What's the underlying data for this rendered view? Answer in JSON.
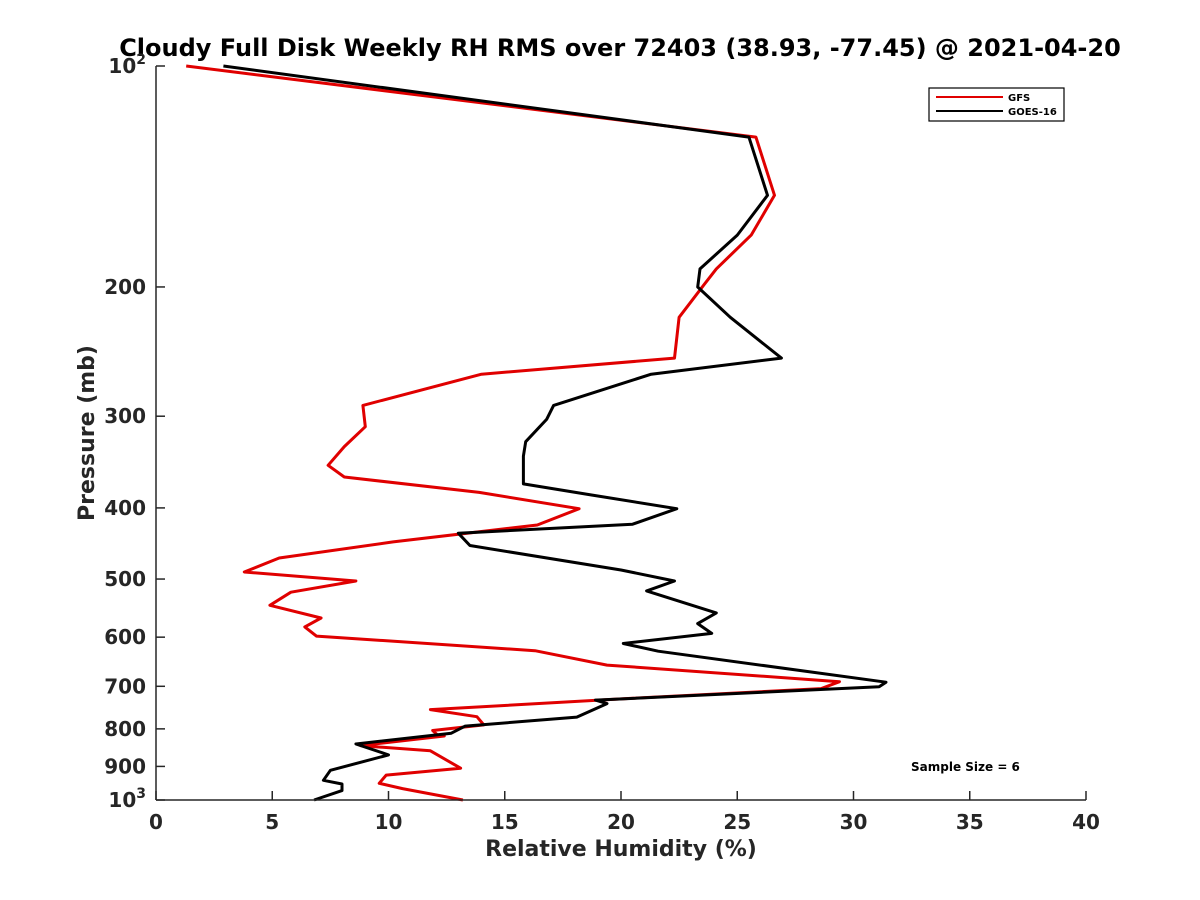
{
  "chart_data": {
    "type": "line",
    "title": "Cloudy Full Disk Weekly RH RMS over 72403 (38.93, -77.45) @ 2021-04-20",
    "xlabel": "Relative Humidity (%)",
    "ylabel": "Pressure (mb)",
    "xlim": [
      0,
      40
    ],
    "ylim": [
      100,
      1000
    ],
    "y_scale": "log",
    "y_reversed": true,
    "x_ticks": [
      0,
      5,
      10,
      15,
      20,
      25,
      30,
      35,
      40
    ],
    "y_ticks": [
      {
        "value": 100,
        "base": "10",
        "exp": "2"
      },
      {
        "value": 200,
        "label": "200"
      },
      {
        "value": 300,
        "label": "300"
      },
      {
        "value": 400,
        "label": "400"
      },
      {
        "value": 500,
        "label": "500"
      },
      {
        "value": 600,
        "label": "600"
      },
      {
        "value": 700,
        "label": "700"
      },
      {
        "value": 800,
        "label": "800"
      },
      {
        "value": 900,
        "label": "900"
      },
      {
        "value": 1000,
        "base": "10",
        "exp": "3"
      }
    ],
    "grid": false,
    "legend_position": "top-right",
    "annotation": "Sample Size = 6",
    "series": [
      {
        "name": "GFS",
        "color": "#e00000",
        "points": [
          [
            1.3,
            100
          ],
          [
            25.8,
            125
          ],
          [
            26.6,
            150
          ],
          [
            25.6,
            170
          ],
          [
            24.1,
            189
          ],
          [
            23.6,
            198
          ],
          [
            22.5,
            220
          ],
          [
            22.3,
            250
          ],
          [
            14.0,
            263
          ],
          [
            8.9,
            290
          ],
          [
            9.0,
            310
          ],
          [
            8.1,
            330
          ],
          [
            7.4,
            350
          ],
          [
            8.1,
            363
          ],
          [
            13.9,
            381
          ],
          [
            18.2,
            401
          ],
          [
            16.4,
            422
          ],
          [
            10.2,
            445
          ],
          [
            5.3,
            468
          ],
          [
            3.8,
            489
          ],
          [
            8.6,
            503
          ],
          [
            5.8,
            521
          ],
          [
            4.9,
            543
          ],
          [
            7.1,
            565
          ],
          [
            6.4,
            581
          ],
          [
            6.9,
            598
          ],
          [
            16.3,
            626
          ],
          [
            19.4,
            655
          ],
          [
            29.4,
            690
          ],
          [
            28.6,
            705
          ],
          [
            20.4,
            727
          ],
          [
            11.8,
            753
          ],
          [
            13.8,
            770
          ],
          [
            14.1,
            790
          ],
          [
            11.9,
            804
          ],
          [
            12.1,
            815
          ],
          [
            12.4,
            818
          ],
          [
            8.8,
            843
          ],
          [
            11.8,
            857
          ],
          [
            13.1,
            905
          ],
          [
            9.9,
            925
          ],
          [
            9.6,
            949
          ],
          [
            10.6,
            965
          ],
          [
            13.2,
            1000
          ]
        ]
      },
      {
        "name": "GOES-16",
        "color": "#000000",
        "points": [
          [
            2.9,
            100
          ],
          [
            25.5,
            125
          ],
          [
            26.3,
            150
          ],
          [
            25.0,
            170
          ],
          [
            23.4,
            189
          ],
          [
            23.3,
            200
          ],
          [
            24.7,
            220
          ],
          [
            26.9,
            250
          ],
          [
            21.3,
            263
          ],
          [
            17.1,
            290
          ],
          [
            16.8,
            303
          ],
          [
            15.9,
            325
          ],
          [
            15.8,
            340
          ],
          [
            15.8,
            371
          ],
          [
            18.7,
            384
          ],
          [
            22.4,
            401
          ],
          [
            20.5,
            421
          ],
          [
            13.0,
            433
          ],
          [
            13.5,
            450
          ],
          [
            20.0,
            486
          ],
          [
            22.3,
            503
          ],
          [
            21.1,
            519
          ],
          [
            24.1,
            556
          ],
          [
            23.3,
            575
          ],
          [
            23.9,
            593
          ],
          [
            20.1,
            612
          ],
          [
            21.6,
            627
          ],
          [
            31.4,
            691
          ],
          [
            31.1,
            701
          ],
          [
            18.9,
            731
          ],
          [
            19.4,
            739
          ],
          [
            18.1,
            771
          ],
          [
            13.3,
            793
          ],
          [
            12.7,
            811
          ],
          [
            8.6,
            839
          ],
          [
            10.0,
            868
          ],
          [
            7.5,
            911
          ],
          [
            7.2,
            940
          ],
          [
            8.0,
            951
          ],
          [
            8.0,
            971
          ],
          [
            6.8,
            1000
          ]
        ]
      }
    ]
  }
}
